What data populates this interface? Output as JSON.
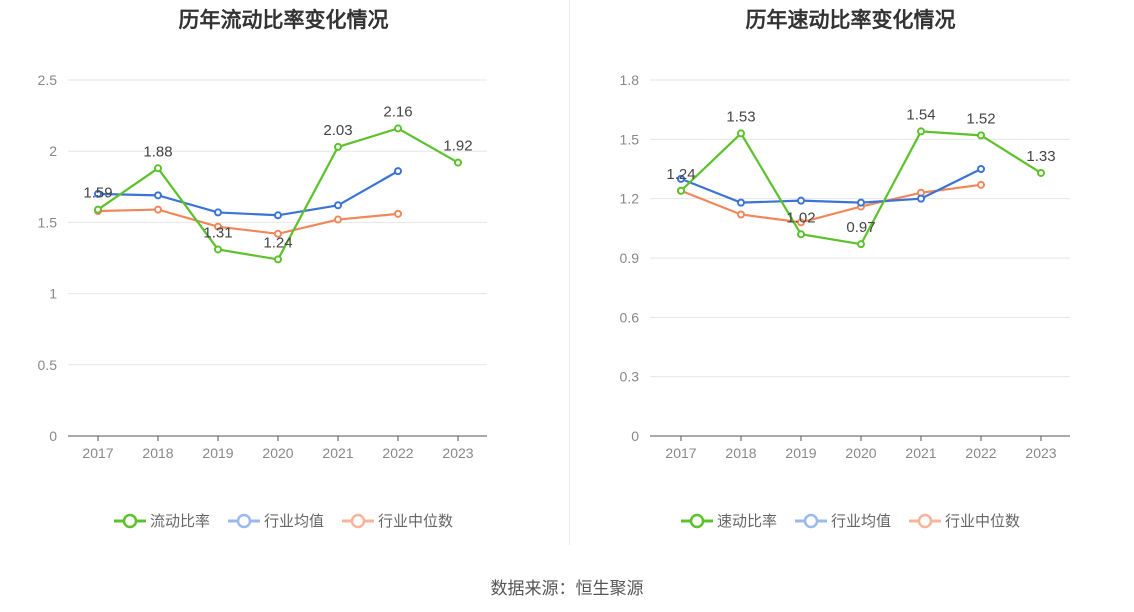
{
  "chart_data": [
    {
      "type": "line",
      "title": "历年流动比率变化情况",
      "categories": [
        "2017",
        "2018",
        "2019",
        "2020",
        "2021",
        "2022",
        "2023"
      ],
      "ylim": [
        0,
        2.5
      ],
      "yticks": [
        "0",
        "0.5",
        "1",
        "1.5",
        "2",
        "2.5"
      ],
      "grid": true,
      "legend": "bottom",
      "series": [
        {
          "name": "流动比率",
          "color": "#5cc12b",
          "values": [
            1.59,
            1.88,
            1.31,
            1.24,
            2.03,
            2.16,
            1.92
          ],
          "labels": [
            "1.59",
            "1.88",
            "1.31",
            "1.24",
            "2.03",
            "2.16",
            "1.92"
          ]
        },
        {
          "name": "行业均值",
          "color": "#3b74d6",
          "values": [
            1.7,
            1.69,
            1.57,
            1.55,
            1.62,
            1.86,
            null
          ]
        },
        {
          "name": "行业中位数",
          "color": "#f0875a",
          "values": [
            1.58,
            1.59,
            1.47,
            1.42,
            1.52,
            1.56,
            null
          ]
        }
      ]
    },
    {
      "type": "line",
      "title": "历年速动比率变化情况",
      "categories": [
        "2017",
        "2018",
        "2019",
        "2020",
        "2021",
        "2022",
        "2023"
      ],
      "ylim": [
        0,
        1.8
      ],
      "yticks": [
        "0",
        "0.3",
        "0.6",
        "0.9",
        "1.2",
        "1.5",
        "1.8"
      ],
      "grid": true,
      "legend": "bottom",
      "series": [
        {
          "name": "速动比率",
          "color": "#5cc12b",
          "values": [
            1.24,
            1.53,
            1.02,
            0.97,
            1.54,
            1.52,
            1.33
          ],
          "labels": [
            "1.24",
            "1.53",
            "1.02",
            "0.97",
            "1.54",
            "1.52",
            "1.33"
          ]
        },
        {
          "name": "行业均值",
          "color": "#3b74d6",
          "values": [
            1.3,
            1.18,
            1.19,
            1.18,
            1.2,
            1.35,
            null
          ]
        },
        {
          "name": "行业中位数",
          "color": "#f0875a",
          "values": [
            1.24,
            1.12,
            1.08,
            1.16,
            1.23,
            1.27,
            null
          ]
        }
      ]
    }
  ],
  "footer": "数据来源：恒生聚源"
}
